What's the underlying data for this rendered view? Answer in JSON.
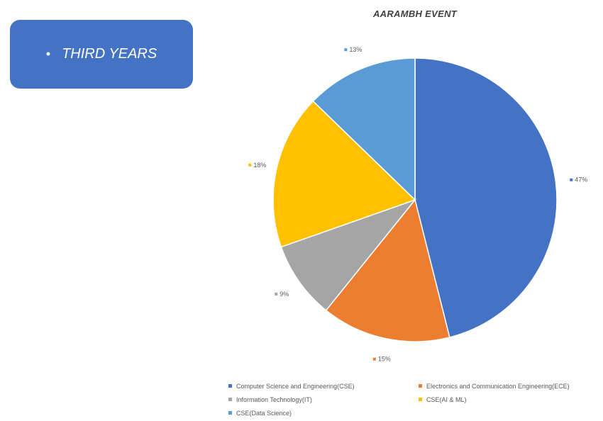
{
  "badge": {
    "bullet": "•",
    "label": "THIRD YEARS"
  },
  "chart_data": {
    "type": "pie",
    "title": "AARAMBH EVENT",
    "categories": [
      "Computer Science and Engineering(CSE)",
      "Electronics and Communication Engineering(ECE)",
      "Information Technology(IT)",
      "CSE(AI & ML)",
      "CSE(Data Science)"
    ],
    "values": [
      47,
      15,
      9,
      18,
      13
    ],
    "labels": [
      "47%",
      "15%",
      "9%",
      "18%",
      "13%"
    ],
    "colors": [
      "#4472c4",
      "#ed7d31",
      "#a5a5a5",
      "#ffc000",
      "#5b9bd5"
    ],
    "legend_position": "bottom"
  }
}
